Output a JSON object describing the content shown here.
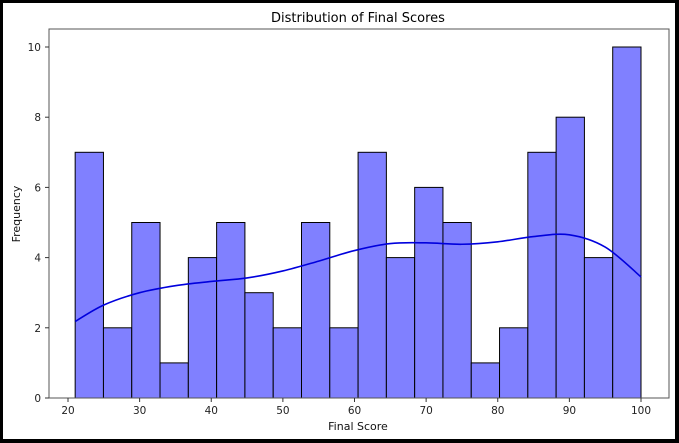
{
  "chart_data": {
    "type": "bar",
    "subtype": "histogram_with_kde",
    "title": "Distribution of Final Scores",
    "xlabel": "Final Score",
    "ylabel": "Frequency",
    "xlim": [
      17.5,
      104
    ],
    "ylim": [
      0,
      10.5
    ],
    "xticks": [
      20,
      30,
      40,
      50,
      60,
      70,
      80,
      90,
      100
    ],
    "yticks": [
      0,
      2,
      4,
      6,
      8,
      10
    ],
    "bin_edges": [
      21,
      24.95,
      28.9,
      32.85,
      36.8,
      40.75,
      44.7,
      48.65,
      52.6,
      56.55,
      60.5,
      64.45,
      68.4,
      72.35,
      76.3,
      80.25,
      84.2,
      88.15,
      92.1,
      96.05,
      100
    ],
    "values": [
      7,
      2,
      5,
      1,
      4,
      5,
      3,
      2,
      5,
      2,
      7,
      4,
      6,
      5,
      1,
      2,
      7,
      8,
      4,
      10
    ],
    "bar_color": "#8080ff",
    "bar_edge_color": "#000000",
    "kde": {
      "color": "#0000dd",
      "x": [
        21,
        25,
        30,
        35,
        40,
        45,
        50,
        55,
        60,
        65,
        70,
        75,
        80,
        85,
        90,
        95,
        100
      ],
      "y": [
        2.18,
        2.65,
        3.0,
        3.2,
        3.32,
        3.42,
        3.62,
        3.9,
        4.2,
        4.4,
        4.42,
        4.38,
        4.45,
        4.6,
        4.65,
        4.3,
        3.45
      ]
    },
    "grid": false,
    "legend": null
  },
  "labels": {
    "title": "Distribution of Final Scores",
    "xlabel": "Final Score",
    "ylabel": "Frequency"
  }
}
